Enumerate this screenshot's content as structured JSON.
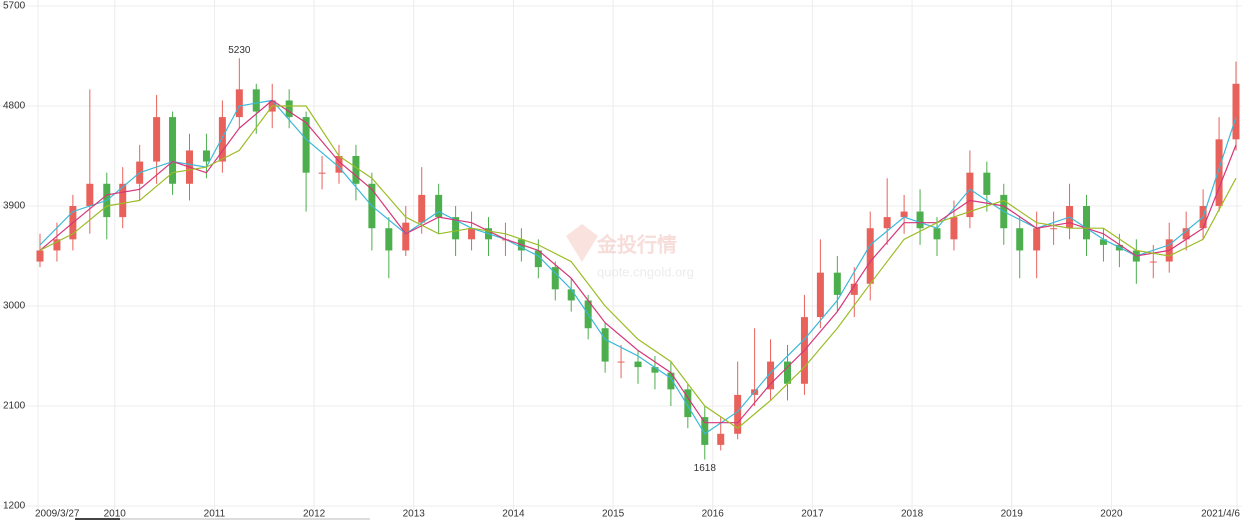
{
  "chart_data": {
    "type": "candlestick",
    "xlim": [
      2009.23,
      2021.26
    ],
    "xticks": [
      {
        "value": 2009.23,
        "label": "2009/3/27"
      },
      {
        "value": 2010,
        "label": "2010"
      },
      {
        "value": 2011,
        "label": "2011"
      },
      {
        "value": 2012,
        "label": "2012"
      },
      {
        "value": 2013,
        "label": "2013"
      },
      {
        "value": 2014,
        "label": "2014"
      },
      {
        "value": 2015,
        "label": "2015"
      },
      {
        "value": 2016,
        "label": "2016"
      },
      {
        "value": 2017,
        "label": "2017"
      },
      {
        "value": 2018,
        "label": "2018"
      },
      {
        "value": 2019,
        "label": "2019"
      },
      {
        "value": 2020,
        "label": "2020"
      },
      {
        "value": 2021.26,
        "label": "2021/4/6"
      }
    ],
    "ylim": [
      1200,
      5700
    ],
    "yticks": [
      1200,
      2100,
      3000,
      3900,
      4800,
      5700
    ],
    "grid": true,
    "up_color": "#e8625b",
    "down_color": "#4cae4c",
    "x": [
      2009.25,
      2009.42,
      2009.58,
      2009.75,
      2009.92,
      2010.08,
      2010.25,
      2010.42,
      2010.58,
      2010.75,
      2010.92,
      2011.08,
      2011.25,
      2011.42,
      2011.58,
      2011.75,
      2011.92,
      2012.08,
      2012.25,
      2012.42,
      2012.58,
      2012.75,
      2012.92,
      2013.08,
      2013.25,
      2013.42,
      2013.58,
      2013.75,
      2013.92,
      2014.08,
      2014.25,
      2014.42,
      2014.58,
      2014.75,
      2014.92,
      2015.08,
      2015.25,
      2015.42,
      2015.58,
      2015.75,
      2015.92,
      2016.08,
      2016.25,
      2016.42,
      2016.58,
      2016.75,
      2016.92,
      2017.08,
      2017.25,
      2017.42,
      2017.58,
      2017.75,
      2017.92,
      2018.08,
      2018.25,
      2018.42,
      2018.58,
      2018.75,
      2018.92,
      2019.08,
      2019.25,
      2019.42,
      2019.58,
      2019.75,
      2019.92,
      2020.08,
      2020.25,
      2020.42,
      2020.58,
      2020.75,
      2020.92,
      2021.08,
      2021.25
    ],
    "open": [
      3400,
      3500,
      3600,
      3900,
      4100,
      3800,
      4100,
      4300,
      4700,
      4100,
      4400,
      4300,
      4700,
      4950,
      4750,
      4850,
      4700,
      4200,
      4200,
      4350,
      4100,
      3700,
      3500,
      3750,
      4000,
      3800,
      3600,
      3700,
      3600,
      3600,
      3500,
      3350,
      3150,
      3050,
      2800,
      2500,
      2500,
      2450,
      2400,
      2250,
      2000,
      1750,
      1850,
      2200,
      2250,
      2500,
      2300,
      2900,
      3300,
      3100,
      3200,
      3700,
      3800,
      3850,
      3700,
      3600,
      3800,
      4200,
      4000,
      3700,
      3500,
      3700,
      3700,
      3900,
      3600,
      3550,
      3500,
      3400,
      3400,
      3600,
      3700,
      3900,
      4500
    ],
    "high": [
      3650,
      3750,
      4000,
      4950,
      4200,
      4250,
      4450,
      4900,
      4750,
      4550,
      4550,
      4850,
      5230,
      5000,
      5000,
      4950,
      4750,
      4350,
      4450,
      4450,
      4200,
      3800,
      3900,
      4250,
      4100,
      3900,
      3850,
      3800,
      3750,
      3700,
      3600,
      3400,
      3250,
      3100,
      2850,
      2650,
      2600,
      2550,
      2500,
      2300,
      2100,
      2000,
      2500,
      2800,
      2700,
      2650,
      3100,
      3600,
      3450,
      3350,
      3850,
      4150,
      4000,
      4050,
      3800,
      3950,
      4400,
      4300,
      4100,
      3800,
      3850,
      3850,
      4100,
      4000,
      3700,
      3650,
      3600,
      3550,
      3750,
      3850,
      4050,
      4700,
      5200
    ],
    "low": [
      3350,
      3400,
      3500,
      3650,
      3600,
      3700,
      3950,
      4100,
      4000,
      3950,
      4150,
      4200,
      4600,
      4550,
      4600,
      4600,
      3850,
      4050,
      4100,
      3950,
      3500,
      3250,
      3450,
      3650,
      3650,
      3450,
      3500,
      3450,
      3450,
      3400,
      3250,
      3050,
      2950,
      2700,
      2400,
      2350,
      2300,
      2250,
      2100,
      1900,
      1618,
      1700,
      1800,
      2100,
      2150,
      2150,
      2200,
      2800,
      2950,
      2900,
      3050,
      3550,
      3650,
      3550,
      3450,
      3500,
      3700,
      3850,
      3550,
      3250,
      3250,
      3550,
      3600,
      3450,
      3400,
      3350,
      3200,
      3250,
      3300,
      3500,
      3600,
      3850,
      4400
    ],
    "close": [
      3500,
      3600,
      3900,
      4100,
      3800,
      4100,
      4300,
      4700,
      4100,
      4400,
      4300,
      4700,
      4950,
      4750,
      4850,
      4700,
      4200,
      4200,
      4350,
      4100,
      3700,
      3500,
      3750,
      4000,
      3800,
      3600,
      3700,
      3600,
      3600,
      3500,
      3350,
      3150,
      3050,
      2800,
      2500,
      2500,
      2450,
      2400,
      2250,
      2000,
      1750,
      1850,
      2200,
      2250,
      2500,
      2300,
      2900,
      3300,
      3100,
      3200,
      3700,
      3800,
      3850,
      3700,
      3600,
      3800,
      4200,
      4000,
      3700,
      3500,
      3700,
      3700,
      3900,
      3600,
      3550,
      3500,
      3400,
      3400,
      3600,
      3700,
      3900,
      4500,
      5000
    ],
    "lines": [
      {
        "color": "#3cb8d8",
        "x": [
          2009.25,
          2009.58,
          2009.92,
          2010.25,
          2010.58,
          2010.92,
          2011.25,
          2011.58,
          2011.92,
          2012.25,
          2012.58,
          2012.92,
          2013.25,
          2013.58,
          2013.92,
          2014.25,
          2014.58,
          2014.92,
          2015.25,
          2015.58,
          2015.92,
          2016.25,
          2016.58,
          2016.92,
          2017.25,
          2017.58,
          2017.92,
          2018.25,
          2018.58,
          2018.92,
          2019.25,
          2019.58,
          2019.92,
          2020.25,
          2020.58,
          2020.92,
          2021.25
        ],
        "values": [
          3550,
          3850,
          3950,
          4200,
          4300,
          4250,
          4800,
          4850,
          4500,
          4250,
          3900,
          3650,
          3850,
          3700,
          3600,
          3450,
          3150,
          2700,
          2550,
          2350,
          1850,
          2050,
          2400,
          2700,
          3050,
          3550,
          3800,
          3700,
          4050,
          3850,
          3700,
          3800,
          3600,
          3450,
          3550,
          3800,
          4700
        ]
      },
      {
        "color": "#d6367a",
        "x": [
          2009.25,
          2009.58,
          2009.92,
          2010.25,
          2010.58,
          2010.92,
          2011.25,
          2011.58,
          2011.92,
          2012.25,
          2012.58,
          2012.92,
          2013.25,
          2013.58,
          2013.92,
          2014.25,
          2014.58,
          2014.92,
          2015.25,
          2015.58,
          2015.92,
          2016.25,
          2016.58,
          2016.92,
          2017.25,
          2017.58,
          2017.92,
          2018.25,
          2018.58,
          2018.92,
          2019.25,
          2019.58,
          2019.92,
          2020.25,
          2020.58,
          2020.92,
          2021.25
        ],
        "values": [
          3500,
          3750,
          4000,
          4050,
          4300,
          4200,
          4600,
          4850,
          4650,
          4300,
          4050,
          3650,
          3800,
          3750,
          3600,
          3500,
          3250,
          2850,
          2600,
          2400,
          1950,
          1950,
          2300,
          2600,
          2950,
          3400,
          3750,
          3750,
          3950,
          3900,
          3700,
          3750,
          3650,
          3450,
          3500,
          3700,
          4450
        ]
      },
      {
        "color": "#9cbc26",
        "x": [
          2009.25,
          2009.58,
          2009.92,
          2010.25,
          2010.58,
          2010.92,
          2011.25,
          2011.58,
          2011.92,
          2012.25,
          2012.58,
          2012.92,
          2013.25,
          2013.58,
          2013.92,
          2014.25,
          2014.58,
          2014.92,
          2015.25,
          2015.58,
          2015.92,
          2016.25,
          2016.58,
          2016.92,
          2017.25,
          2017.58,
          2017.92,
          2018.25,
          2018.58,
          2018.92,
          2019.25,
          2019.58,
          2019.92,
          2020.25,
          2020.58,
          2020.92,
          2021.25
        ],
        "values": [
          3500,
          3650,
          3900,
          3950,
          4200,
          4250,
          4400,
          4800,
          4800,
          4350,
          4150,
          3800,
          3650,
          3700,
          3650,
          3550,
          3400,
          3000,
          2700,
          2500,
          2100,
          1900,
          2150,
          2450,
          2800,
          3200,
          3600,
          3750,
          3850,
          3950,
          3750,
          3700,
          3700,
          3500,
          3450,
          3600,
          4150
        ]
      }
    ],
    "annotations": [
      {
        "x": 2011.25,
        "value": 5230,
        "position": "above"
      },
      {
        "x": 2015.92,
        "value": 1618,
        "position": "below"
      }
    ],
    "watermark": [
      "金投行情",
      "quote.cngold.org"
    ]
  }
}
